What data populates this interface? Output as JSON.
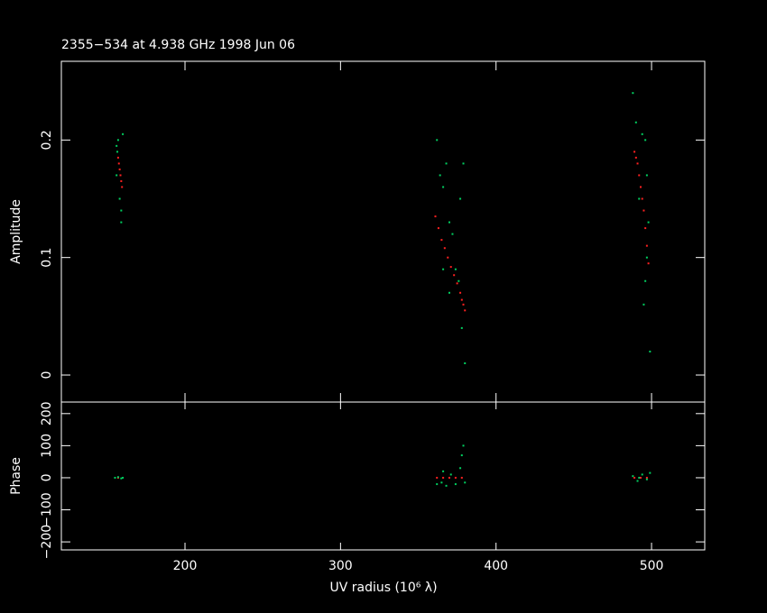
{
  "chart_data": [
    {
      "type": "scatter",
      "title": "2355−534 at 4.938 GHz 1998 Jun 06",
      "ylabel": "Amplitude",
      "xlim": [
        120.5,
        534.2
      ],
      "ylim": [
        -0.023,
        0.267
      ],
      "xticks": [
        200,
        300,
        400,
        500
      ],
      "yticks": [
        0,
        0.1,
        0.2
      ],
      "series": [
        {
          "color": "#ff2020",
          "x": [
            157,
            157.5,
            158,
            158.5,
            159,
            159.5,
            361,
            363,
            365,
            367,
            369,
            371,
            373,
            375,
            377,
            378,
            379,
            380,
            489,
            490,
            491,
            492,
            493,
            494,
            495,
            496,
            497,
            498
          ],
          "values": [
            0.185,
            0.18,
            0.175,
            0.17,
            0.165,
            0.16,
            0.135,
            0.125,
            0.115,
            0.108,
            0.1,
            0.092,
            0.085,
            0.078,
            0.07,
            0.064,
            0.06,
            0.055,
            0.19,
            0.185,
            0.18,
            0.17,
            0.16,
            0.15,
            0.14,
            0.125,
            0.11,
            0.095
          ]
        },
        {
          "color": "#00d060",
          "x": [
            156,
            156.5,
            157,
            158,
            159,
            159,
            160,
            156,
            362,
            364,
            366,
            368,
            370,
            372,
            374,
            376,
            378,
            380,
            379,
            377,
            366,
            370,
            488,
            490,
            494,
            496,
            497,
            496,
            495,
            497,
            499,
            492,
            498
          ],
          "values": [
            0.195,
            0.19,
            0.2,
            0.15,
            0.14,
            0.13,
            0.205,
            0.17,
            0.2,
            0.17,
            0.16,
            0.18,
            0.13,
            0.12,
            0.09,
            0.08,
            0.04,
            0.01,
            0.18,
            0.15,
            0.09,
            0.07,
            0.24,
            0.215,
            0.205,
            0.2,
            0.17,
            0.08,
            0.06,
            0.1,
            0.02,
            0.15,
            0.13
          ]
        }
      ]
    },
    {
      "type": "scatter",
      "ylabel": "Phase",
      "xlabel": "UV radius  (10⁶ λ)",
      "xlim": [
        120.5,
        534.2
      ],
      "ylim": [
        -225,
        236
      ],
      "xticks": [
        200,
        300,
        400,
        500
      ],
      "yticks": [
        {
          "value": -200,
          "label": "−200"
        },
        {
          "value": -100,
          "label": "−100"
        },
        0,
        100,
        200
      ],
      "series": [
        {
          "color": "#ff2020",
          "x": [
            157,
            362,
            366,
            370,
            374,
            378,
            489,
            493,
            497
          ],
          "values": [
            0,
            0,
            0,
            0,
            0,
            0,
            0,
            0,
            0
          ]
        },
        {
          "color": "#00d060",
          "x": [
            155,
            157,
            159,
            160,
            362,
            365,
            368,
            371,
            374,
            377,
            378,
            379,
            380,
            366,
            488,
            491,
            494,
            497,
            499,
            492
          ],
          "values": [
            0,
            2,
            -2,
            0,
            -20,
            -15,
            -25,
            10,
            -20,
            30,
            70,
            100,
            -15,
            20,
            5,
            -10,
            10,
            -5,
            15,
            0
          ]
        }
      ]
    }
  ]
}
